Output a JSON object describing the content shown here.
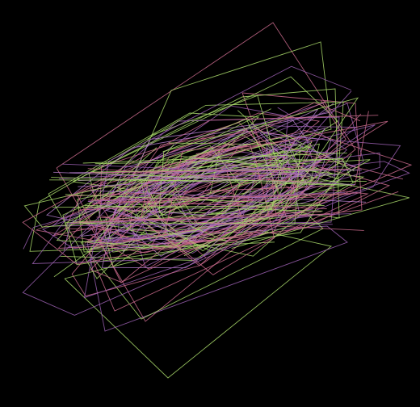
{
  "artwork": {
    "background": "#000000",
    "palette": {
      "green": "#a8d86a",
      "pink": "#c96a8c",
      "purple": "#9a5fb0",
      "lavender": "#b07ac8"
    },
    "line_opacity": 0.85
  }
}
